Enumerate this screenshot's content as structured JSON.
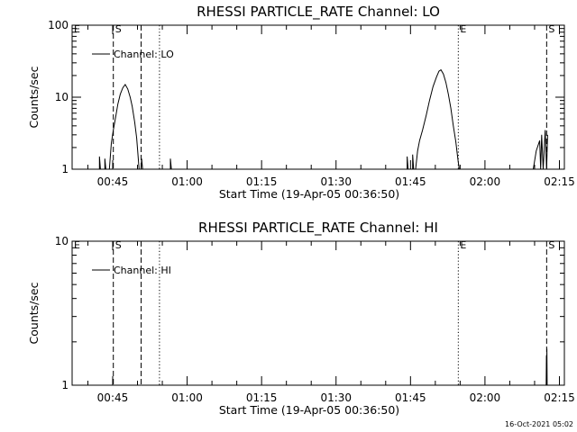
{
  "footer_timestamp": "16-Oct-2021 05:02",
  "chart_data": [
    {
      "type": "line",
      "title": "RHESSI PARTICLE_RATE Channel: LO",
      "xlabel": "Start Time (19-Apr-05 00:36:50)",
      "ylabel": "Counts/sec",
      "y_scale": "log",
      "ylim": [
        1,
        100
      ],
      "y_ticks": [
        {
          "v": 1,
          "label": "1"
        },
        {
          "v": 10,
          "label": "10"
        },
        {
          "v": 100,
          "label": "100"
        }
      ],
      "x_unit": "minutes since 00:36:50",
      "xlim": [
        0,
        99.17
      ],
      "x_ticks": [
        {
          "v": 8.17,
          "label": "00:45"
        },
        {
          "v": 23.17,
          "label": "01:00"
        },
        {
          "v": 38.17,
          "label": "01:15"
        },
        {
          "v": 53.17,
          "label": "01:30"
        },
        {
          "v": 68.17,
          "label": "01:45"
        },
        {
          "v": 83.17,
          "label": "02:00"
        },
        {
          "v": 98.17,
          "label": "02:15"
        }
      ],
      "event_lines": [
        {
          "x": 0.0,
          "style": "dotted",
          "label": "E"
        },
        {
          "x": 8.3,
          "style": "dashed",
          "label": "S"
        },
        {
          "x": 13.9,
          "style": "dashed",
          "label": ""
        },
        {
          "x": 17.6,
          "style": "dotted",
          "label": ""
        },
        {
          "x": 77.8,
          "style": "dotted",
          "label": "E"
        },
        {
          "x": 95.6,
          "style": "dashed",
          "label": "S"
        }
      ],
      "legend": {
        "placement": "top-left",
        "label": "Channel: LO"
      },
      "series": [
        {
          "name": "Channel: LO",
          "points": [
            [
              5.5,
              1.0
            ],
            [
              5.5,
              1.5
            ],
            [
              5.7,
              1.0
            ],
            [
              6.6,
              1.0
            ],
            [
              6.6,
              1.4
            ],
            [
              6.8,
              1.0
            ],
            [
              7.5,
              1.0
            ],
            [
              7.9,
              2.3
            ],
            [
              8.3,
              3.5
            ],
            [
              8.8,
              5.5
            ],
            [
              9.2,
              8.0
            ],
            [
              9.7,
              11
            ],
            [
              10.2,
              13.5
            ],
            [
              10.7,
              15
            ],
            [
              11.2,
              13
            ],
            [
              11.7,
              10
            ],
            [
              12.1,
              7.5
            ],
            [
              12.6,
              4.5
            ],
            [
              13.0,
              2.7
            ],
            [
              13.3,
              1.5
            ],
            [
              13.5,
              1.0
            ],
            [
              13.9,
              1.0
            ],
            [
              14.0,
              1.4
            ],
            [
              14.2,
              1.0
            ],
            [
              19.8,
              1.0
            ],
            [
              19.8,
              1.4
            ],
            [
              20.0,
              1.0
            ],
            [
              67.5,
              1.0
            ],
            [
              67.5,
              1.5
            ],
            [
              67.7,
              1.0
            ],
            [
              68.6,
              1.0
            ],
            [
              68.6,
              1.6
            ],
            [
              68.8,
              1.0
            ],
            [
              69.2,
              1.0
            ],
            [
              69.6,
              1.8
            ],
            [
              70.0,
              2.5
            ],
            [
              70.6,
              3.5
            ],
            [
              71.3,
              5.5
            ],
            [
              72.0,
              9.0
            ],
            [
              72.7,
              14
            ],
            [
              73.4,
              19
            ],
            [
              73.9,
              23
            ],
            [
              74.3,
              24
            ],
            [
              74.8,
              21
            ],
            [
              75.3,
              16
            ],
            [
              75.8,
              11
            ],
            [
              76.3,
              7
            ],
            [
              76.8,
              4
            ],
            [
              77.3,
              2.4
            ],
            [
              77.7,
              1.4
            ],
            [
              78.0,
              1.0
            ],
            [
              92.9,
              1.0
            ],
            [
              93.5,
              1.8
            ],
            [
              94.2,
              2.5
            ],
            [
              94.4,
              1.0
            ],
            [
              94.6,
              3.0
            ],
            [
              94.9,
              1.0
            ],
            [
              95.3,
              3.5
            ],
            [
              95.6,
              1.0
            ],
            [
              95.8,
              3.0
            ]
          ]
        }
      ]
    },
    {
      "type": "line",
      "title": "RHESSI PARTICLE_RATE Channel: HI",
      "xlabel": "Start Time (19-Apr-05 00:36:50)",
      "ylabel": "Counts/sec",
      "y_scale": "log",
      "ylim": [
        1,
        10
      ],
      "y_ticks": [
        {
          "v": 1,
          "label": "1"
        },
        {
          "v": 10,
          "label": "10"
        }
      ],
      "x_unit": "minutes since 00:36:50",
      "xlim": [
        0,
        99.17
      ],
      "x_ticks": [
        {
          "v": 8.17,
          "label": "00:45"
        },
        {
          "v": 23.17,
          "label": "01:00"
        },
        {
          "v": 38.17,
          "label": "01:15"
        },
        {
          "v": 53.17,
          "label": "01:30"
        },
        {
          "v": 68.17,
          "label": "01:45"
        },
        {
          "v": 83.17,
          "label": "02:00"
        },
        {
          "v": 98.17,
          "label": "02:15"
        }
      ],
      "event_lines": [
        {
          "x": 0.0,
          "style": "dotted",
          "label": "E"
        },
        {
          "x": 8.3,
          "style": "dashed",
          "label": "S"
        },
        {
          "x": 13.9,
          "style": "dashed",
          "label": ""
        },
        {
          "x": 17.6,
          "style": "dotted",
          "label": ""
        },
        {
          "x": 77.8,
          "style": "dotted",
          "label": "E"
        },
        {
          "x": 95.6,
          "style": "dashed",
          "label": "S"
        }
      ],
      "legend": {
        "placement": "top-left",
        "label": "Channel: HI"
      },
      "series": [
        {
          "name": "Channel: HI",
          "points": [
            [
              95.5,
              1.0
            ],
            [
              95.55,
              1.6
            ],
            [
              95.6,
              1.0
            ],
            [
              95.65,
              1.8
            ],
            [
              95.7,
              1.0
            ]
          ]
        }
      ]
    }
  ]
}
